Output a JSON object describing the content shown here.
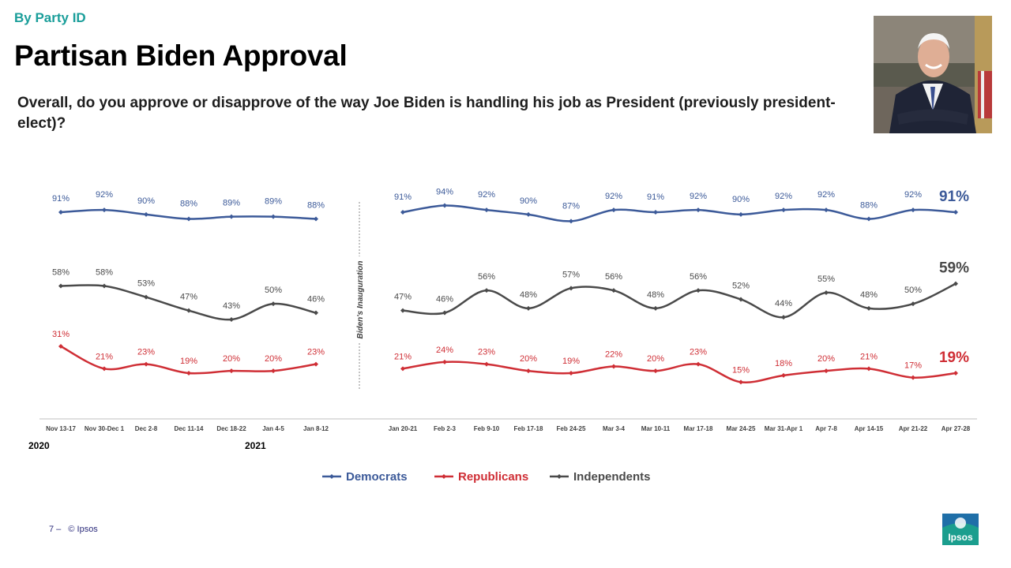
{
  "header": {
    "kicker": "By Party ID",
    "title": "Partisan Biden Approval",
    "question": "Overall, do you approve or disapprove of the way Joe Biden is handling his job as President (previously president-elect)?"
  },
  "footer": {
    "page": "7 –",
    "copyright": "© Ipsos"
  },
  "logo": {
    "text": "Ipsos"
  },
  "chart_data": {
    "type": "line",
    "categories": [
      "Nov 13-17",
      "Nov 30-Dec 1",
      "Dec 2-8",
      "Dec 11-14",
      "Dec 18-22",
      "Jan 4-5",
      "Jan 8-12",
      "Jan 20-21",
      "Feb 2-3",
      "Feb 9-10",
      "Feb 17-18",
      "Feb 24-25",
      "Mar 3-4",
      "Mar 10-11",
      "Mar 17-18",
      "Mar 24-25",
      "Mar 31-Apr 1",
      "Apr 7-8",
      "Apr 14-15",
      "Apr 21-22",
      "Apr 27-28"
    ],
    "segments": [
      [
        0,
        6
      ],
      [
        7,
        20
      ]
    ],
    "year_labels": [
      {
        "label": "2020",
        "at": 0
      },
      {
        "label": "2021",
        "at": 5
      }
    ],
    "annotation": "Biden's Inauguration",
    "ylim": [
      0,
      100
    ],
    "grid": false,
    "legend_position": "bottom",
    "series": [
      {
        "name": "Democrats",
        "color": "#3c5a99",
        "values": [
          91,
          92,
          90,
          88,
          89,
          89,
          88,
          91,
          94,
          92,
          90,
          87,
          92,
          91,
          92,
          90,
          92,
          92,
          88,
          92,
          91
        ]
      },
      {
        "name": "Republicans",
        "color": "#cf2e35",
        "values": [
          31,
          21,
          23,
          19,
          20,
          20,
          23,
          21,
          24,
          23,
          20,
          19,
          22,
          20,
          23,
          15,
          18,
          20,
          21,
          17,
          19
        ]
      },
      {
        "name": "Independents",
        "color": "#4a4a4a",
        "values": [
          58,
          58,
          53,
          47,
          43,
          50,
          46,
          47,
          46,
          56,
          48,
          57,
          56,
          48,
          56,
          52,
          44,
          55,
          48,
          50,
          59
        ]
      }
    ]
  }
}
